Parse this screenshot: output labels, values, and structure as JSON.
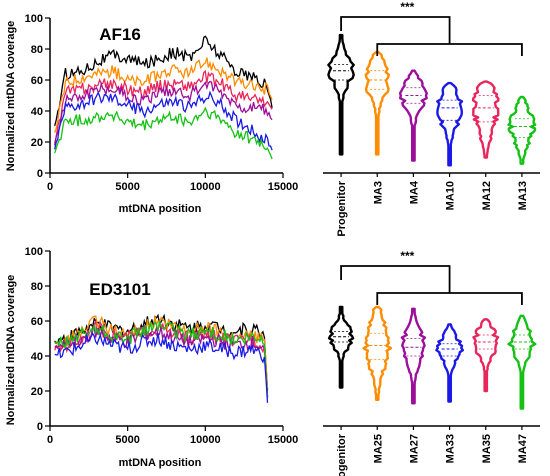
{
  "colors": {
    "Progenitor": "#000000",
    "c1": "#ff8c00",
    "c2": "#9b0f9b",
    "c3": "#1a1ae6",
    "c4": "#e8265c",
    "c5": "#16c116"
  },
  "chart_data": [
    {
      "id": "af16_coverage",
      "type": "line",
      "title": "AF16",
      "xlabel": "mtDNA position",
      "ylabel": "Normalized mtDNA coverage",
      "xlim": [
        0,
        15000
      ],
      "ylim": [
        0,
        100
      ],
      "xticks": [
        0,
        5000,
        10000,
        15000
      ],
      "yticks": [
        0,
        20,
        40,
        60,
        80,
        100
      ],
      "grid": false,
      "x": [
        300,
        1000,
        2000,
        3000,
        4000,
        5000,
        6000,
        7000,
        8000,
        9000,
        10000,
        11000,
        12000,
        13000,
        14000,
        14300
      ],
      "series": [
        {
          "color": "#000000",
          "values": [
            30,
            64,
            66,
            72,
            76,
            74,
            70,
            74,
            78,
            74,
            86,
            76,
            66,
            62,
            56,
            42
          ]
        },
        {
          "color": "#ff8c00",
          "values": [
            25,
            58,
            62,
            64,
            66,
            60,
            58,
            64,
            66,
            64,
            72,
            66,
            58,
            56,
            54,
            48
          ]
        },
        {
          "color": "#e8265c",
          "values": [
            20,
            52,
            54,
            56,
            58,
            54,
            52,
            56,
            58,
            56,
            62,
            58,
            50,
            48,
            46,
            40
          ]
        },
        {
          "color": "#9b0f9b",
          "values": [
            18,
            48,
            50,
            54,
            55,
            50,
            46,
            52,
            54,
            50,
            58,
            52,
            44,
            42,
            40,
            34
          ]
        },
        {
          "color": "#1a1ae6",
          "values": [
            15,
            42,
            44,
            48,
            48,
            44,
            40,
            44,
            46,
            42,
            50,
            44,
            34,
            28,
            20,
            15
          ]
        },
        {
          "color": "#16c116",
          "values": [
            12,
            34,
            34,
            36,
            38,
            32,
            30,
            34,
            36,
            32,
            40,
            34,
            26,
            22,
            16,
            10
          ]
        }
      ]
    },
    {
      "id": "af16_violin",
      "type": "violin",
      "categories": [
        "Progenitor",
        "MA3",
        "MA4",
        "MA10",
        "MA12",
        "MA13"
      ],
      "ylim": [
        0,
        100
      ],
      "medians": [
        66,
        60,
        50,
        42,
        42,
        30
      ],
      "q1": [
        60,
        54,
        45,
        34,
        33,
        23
      ],
      "q3": [
        70,
        66,
        55,
        47,
        50,
        35
      ],
      "min": [
        12,
        12,
        8,
        5,
        10,
        6
      ],
      "max": [
        89,
        78,
        66,
        58,
        59,
        49
      ],
      "significance": "***"
    },
    {
      "id": "ed3101_coverage",
      "type": "line",
      "title": "ED3101",
      "xlabel": "mtDNA position",
      "ylabel": "Normalized mtDNA coverage",
      "xlim": [
        0,
        15000
      ],
      "ylim": [
        0,
        100
      ],
      "xticks": [
        0,
        5000,
        10000,
        15000
      ],
      "yticks": [
        0,
        20,
        40,
        60,
        80,
        100
      ],
      "grid": false,
      "x": [
        300,
        1000,
        2000,
        3000,
        4000,
        5000,
        6000,
        7000,
        8000,
        9000,
        10000,
        11000,
        12000,
        13000,
        13800,
        14000
      ],
      "series": [
        {
          "color": "#000000",
          "values": [
            48,
            50,
            54,
            58,
            56,
            54,
            58,
            62,
            58,
            56,
            58,
            56,
            54,
            56,
            52,
            20
          ]
        },
        {
          "color": "#ff8c00",
          "values": [
            46,
            48,
            54,
            60,
            54,
            52,
            56,
            60,
            56,
            54,
            56,
            54,
            50,
            52,
            50,
            22
          ]
        },
        {
          "color": "#e8265c",
          "values": [
            44,
            46,
            50,
            56,
            52,
            50,
            54,
            56,
            52,
            50,
            52,
            50,
            48,
            50,
            46,
            18
          ]
        },
        {
          "color": "#9b0f9b",
          "values": [
            45,
            46,
            50,
            54,
            50,
            48,
            52,
            54,
            50,
            48,
            50,
            48,
            46,
            48,
            44,
            16
          ]
        },
        {
          "color": "#16c116",
          "values": [
            47,
            48,
            52,
            56,
            52,
            50,
            54,
            58,
            54,
            52,
            54,
            52,
            48,
            50,
            48,
            16
          ]
        },
        {
          "color": "#1a1ae6",
          "values": [
            40,
            42,
            46,
            50,
            46,
            44,
            48,
            50,
            46,
            44,
            46,
            44,
            42,
            44,
            40,
            14
          ]
        }
      ]
    },
    {
      "id": "ed3101_violin",
      "type": "violin",
      "categories": [
        "Progenitor",
        "MA25",
        "MA27",
        "MA33",
        "MA35",
        "MA47"
      ],
      "ylim": [
        0,
        100
      ],
      "medians": [
        51,
        46,
        45,
        44,
        48,
        48
      ],
      "q1": [
        48,
        38,
        40,
        40,
        44,
        44
      ],
      "q3": [
        54,
        53,
        50,
        47,
        52,
        52
      ],
      "min": [
        22,
        15,
        13,
        14,
        20,
        10
      ],
      "max": [
        68,
        68,
        67,
        58,
        61,
        63
      ],
      "significance": "***"
    }
  ]
}
